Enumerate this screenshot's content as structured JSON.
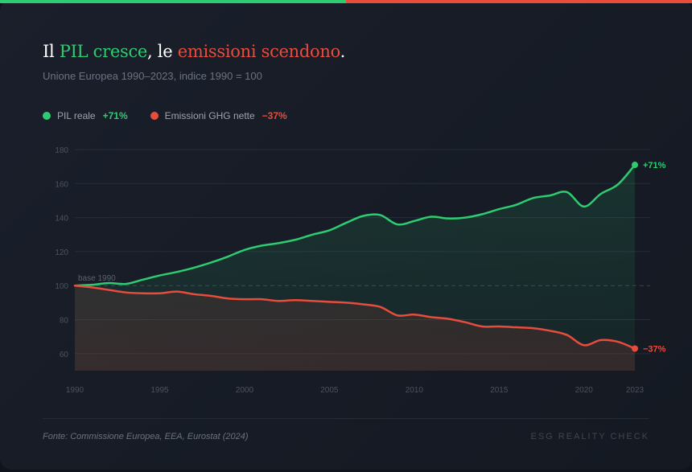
{
  "header": {
    "title_parts": [
      "Il ",
      "PIL cresce",
      ", le ",
      "emissioni scendono",
      "."
    ],
    "subtitle": "Unione Europea 1990–2023, indice 1990 = 100"
  },
  "legend": [
    {
      "label": "PIL reale",
      "value": "+71%",
      "color": "#2ecc71"
    },
    {
      "label": "Emissioni GHG nette",
      "value": "−37%",
      "color": "#e74c3c"
    }
  ],
  "colors": {
    "gdp": "#2ecc71",
    "emissions": "#e74c3c"
  },
  "chart_data": {
    "type": "line",
    "title": "Il PIL cresce, le emissioni scendono.",
    "subtitle": "Unione Europea 1990–2023, indice 1990 = 100",
    "xlabel": "",
    "ylabel": "",
    "x": [
      1990,
      1991,
      1992,
      1993,
      1994,
      1995,
      1996,
      1997,
      1998,
      1999,
      2000,
      2001,
      2002,
      2003,
      2004,
      2005,
      2006,
      2007,
      2008,
      2009,
      2010,
      2011,
      2012,
      2013,
      2014,
      2015,
      2016,
      2017,
      2018,
      2019,
      2020,
      2021,
      2022,
      2023
    ],
    "xlim": [
      1990,
      2023
    ],
    "ylim": [
      50,
      180
    ],
    "yticks": [
      60,
      80,
      100,
      120,
      140,
      160,
      180
    ],
    "xticks": [
      1990,
      1995,
      2000,
      2005,
      2010,
      2015,
      2020,
      2023
    ],
    "grid": true,
    "legend_position": "top-left",
    "baseline": {
      "value": 100,
      "label": "base 1990"
    },
    "series": [
      {
        "name": "PIL reale",
        "end_label": "+71%",
        "values": [
          100,
          100.5,
          101.5,
          101,
          103.5,
          106,
          108,
          110.5,
          113.5,
          117,
          121,
          123.5,
          125,
          127,
          130,
          132.5,
          137,
          141,
          141.5,
          136,
          138,
          140.5,
          139.5,
          140,
          142,
          145,
          147.5,
          151.5,
          153,
          155,
          146.5,
          154,
          159.5,
          171
        ]
      },
      {
        "name": "Emissioni GHG nette",
        "end_label": "−37%",
        "values": [
          100,
          99,
          97.5,
          96,
          95.5,
          95.5,
          96.5,
          95,
          94,
          92.5,
          92,
          92,
          91,
          91.5,
          91,
          90.5,
          90,
          89,
          87.5,
          82.5,
          83,
          81.5,
          80.5,
          78.5,
          76,
          76,
          75.5,
          75,
          73.5,
          71,
          65,
          68,
          67,
          63
        ]
      }
    ]
  },
  "footer": {
    "source": "Fonte: Commissione Europea, EEA, Eurostat (2024)",
    "brand": "ESG REALITY CHECK"
  }
}
